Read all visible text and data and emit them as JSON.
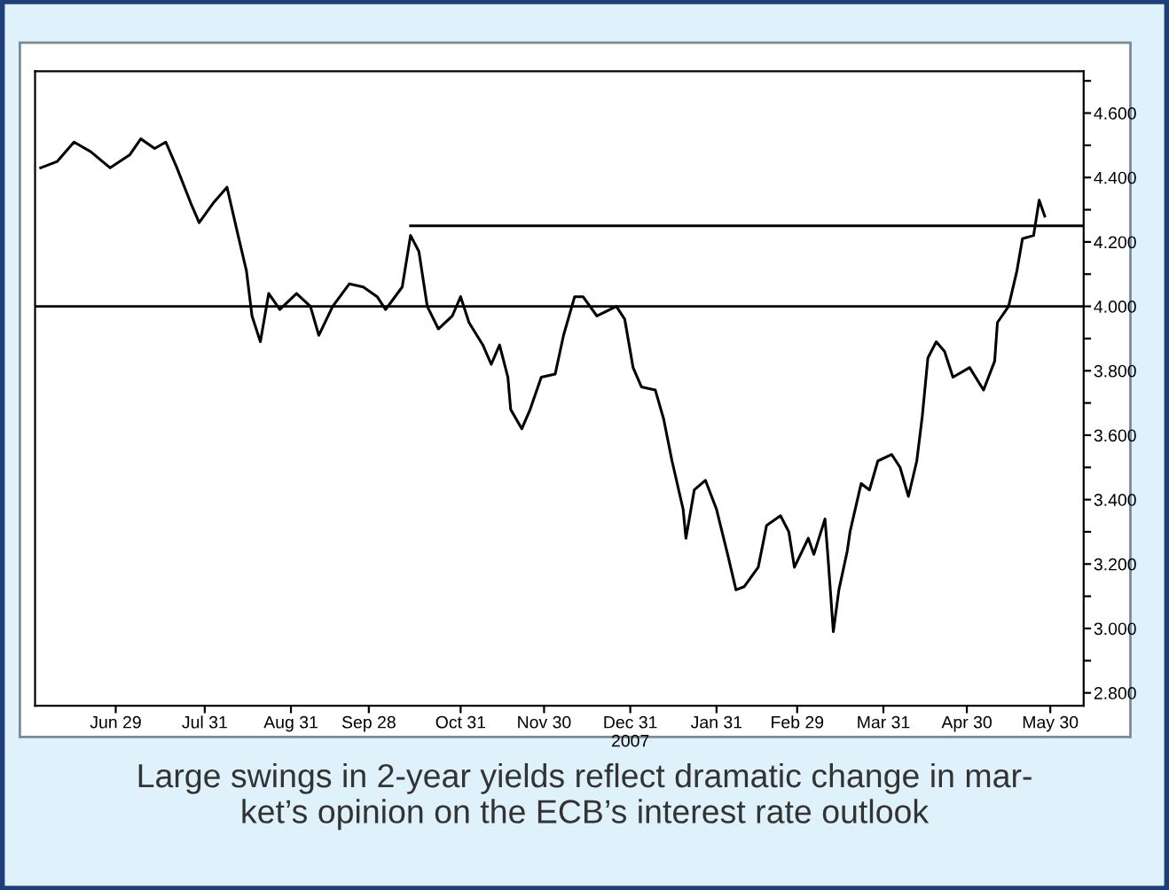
{
  "chart_data": {
    "type": "line",
    "annotations": [
      "Large swings in 2-year yields reflect dramatic change in mar-\nket’s opinion on the ECB’s interest rate outlook"
    ],
    "series": [
      {
        "color": "#000000",
        "x": [
          "2007-06-02",
          "2007-06-08",
          "2007-06-14",
          "2007-06-20",
          "2007-06-27",
          "2007-07-04",
          "2007-07-08",
          "2007-07-13",
          "2007-07-17",
          "2007-07-21",
          "2007-07-26",
          "2007-07-29",
          "2007-08-03",
          "2007-08-08",
          "2007-08-12",
          "2007-08-15",
          "2007-08-17",
          "2007-08-20",
          "2007-08-23",
          "2007-08-27",
          "2007-09-02",
          "2007-09-07",
          "2007-09-10",
          "2007-09-15",
          "2007-09-21",
          "2007-09-26",
          "2007-10-01",
          "2007-10-04",
          "2007-10-10",
          "2007-10-13",
          "2007-10-16",
          "2007-10-19",
          "2007-10-23",
          "2007-10-28",
          "2007-10-31",
          "2007-11-03",
          "2007-11-08",
          "2007-11-11",
          "2007-11-14",
          "2007-11-17",
          "2007-11-18",
          "2007-11-22",
          "2007-11-25",
          "2007-11-29",
          "2007-12-04",
          "2007-12-07",
          "2007-12-11",
          "2007-12-14",
          "2007-12-19",
          "2007-12-26",
          "2007-12-29",
          "2008-01-01",
          "2008-01-04",
          "2008-01-09",
          "2008-01-12",
          "2008-01-15",
          "2008-01-19",
          "2008-01-20",
          "2008-01-23",
          "2008-01-27",
          "2008-01-31",
          "2008-02-04",
          "2008-02-07",
          "2008-02-10",
          "2008-02-15",
          "2008-02-18",
          "2008-02-23",
          "2008-02-26",
          "2008-02-28",
          "2008-03-04",
          "2008-03-06",
          "2008-03-10",
          "2008-03-11",
          "2008-03-13",
          "2008-03-15",
          "2008-03-18",
          "2008-03-19",
          "2008-03-23",
          "2008-03-26",
          "2008-03-29",
          "2008-04-03",
          "2008-04-06",
          "2008-04-09",
          "2008-04-12",
          "2008-04-14",
          "2008-04-16",
          "2008-04-19",
          "2008-04-22",
          "2008-04-25",
          "2008-05-01",
          "2008-05-06",
          "2008-05-10",
          "2008-05-11",
          "2008-05-15",
          "2008-05-18",
          "2008-05-20",
          "2008-05-24",
          "2008-05-26",
          "2008-05-28"
        ],
        "values": [
          4.43,
          4.45,
          4.51,
          4.48,
          4.43,
          4.47,
          4.52,
          4.49,
          4.51,
          4.43,
          4.32,
          4.26,
          4.32,
          4.37,
          4.22,
          4.11,
          3.97,
          3.89,
          4.04,
          3.99,
          4.04,
          4.0,
          3.91,
          4.0,
          4.07,
          4.06,
          4.03,
          3.99,
          4.06,
          4.22,
          4.17,
          4.0,
          3.93,
          3.97,
          4.03,
          3.95,
          3.88,
          3.82,
          3.88,
          3.78,
          3.68,
          3.62,
          3.68,
          3.78,
          3.79,
          3.91,
          4.03,
          4.03,
          3.97,
          4.0,
          3.96,
          3.81,
          3.75,
          3.74,
          3.65,
          3.52,
          3.37,
          3.28,
          3.43,
          3.46,
          3.37,
          3.23,
          3.12,
          3.13,
          3.19,
          3.32,
          3.35,
          3.3,
          3.19,
          3.28,
          3.23,
          3.34,
          3.23,
          2.99,
          3.12,
          3.24,
          3.3,
          3.45,
          3.43,
          3.52,
          3.54,
          3.5,
          3.41,
          3.52,
          3.66,
          3.84,
          3.89,
          3.86,
          3.78,
          3.81,
          3.74,
          3.83,
          3.95,
          4.0,
          4.11,
          4.21,
          4.22,
          4.33,
          4.28
        ]
      },
      {
        "type": "line",
        "color": "#000000",
        "x": [
          "2007-10-13",
          "2008-06-11"
        ],
        "values": [
          4.25,
          4.25
        ]
      }
    ],
    "ref_lines": [
      {
        "axis": "y",
        "value": 4.0,
        "color": "#000000"
      }
    ],
    "xlim": [
      "2007-05-31",
      "2008-06-11"
    ],
    "xticks": [
      {
        "value": "2007-06-29",
        "label": "Jun 29"
      },
      {
        "value": "2007-07-31",
        "label": "Jul 31"
      },
      {
        "value": "2007-08-31",
        "label": "Aug 31"
      },
      {
        "value": "2007-09-28",
        "label": "Sep 28"
      },
      {
        "value": "2007-10-31",
        "label": "Oct 31"
      },
      {
        "value": "2007-11-30",
        "label": "Nov 30"
      },
      {
        "value": "2007-12-31",
        "label": "Dec 31\n2007"
      },
      {
        "value": "2008-01-31",
        "label": "Jan 31"
      },
      {
        "value": "2008-02-29",
        "label": "Feb 29"
      },
      {
        "value": "2008-03-31",
        "label": "Mar 31"
      },
      {
        "value": "2008-04-30",
        "label": "Apr 30"
      },
      {
        "value": "2008-05-30",
        "label": "May 30"
      }
    ],
    "ylim": [
      2.76,
      4.73
    ],
    "yticks": [
      {
        "value": 2.8,
        "label": "2.800"
      },
      {
        "value": 2.9,
        "label": null
      },
      {
        "value": 3.0,
        "label": "3.000"
      },
      {
        "value": 3.1,
        "label": null
      },
      {
        "value": 3.2,
        "label": "3.200"
      },
      {
        "value": 3.3,
        "label": null
      },
      {
        "value": 3.4,
        "label": "3.400"
      },
      {
        "value": 3.5,
        "label": null
      },
      {
        "value": 3.6,
        "label": "3.600"
      },
      {
        "value": 3.7,
        "label": null
      },
      {
        "value": 3.8,
        "label": "3.800"
      },
      {
        "value": 3.9,
        "label": null
      },
      {
        "value": 4.0,
        "label": "4.000"
      },
      {
        "value": 4.1,
        "label": null
      },
      {
        "value": 4.2,
        "label": "4.200"
      },
      {
        "value": 4.3,
        "label": null
      },
      {
        "value": 4.4,
        "label": "4.400"
      },
      {
        "value": 4.5,
        "label": null
      },
      {
        "value": 4.6,
        "label": "4.600"
      },
      {
        "value": 4.7,
        "label": null
      }
    ],
    "grid": false,
    "legend": false,
    "marker": "none",
    "line_style": "solid"
  }
}
